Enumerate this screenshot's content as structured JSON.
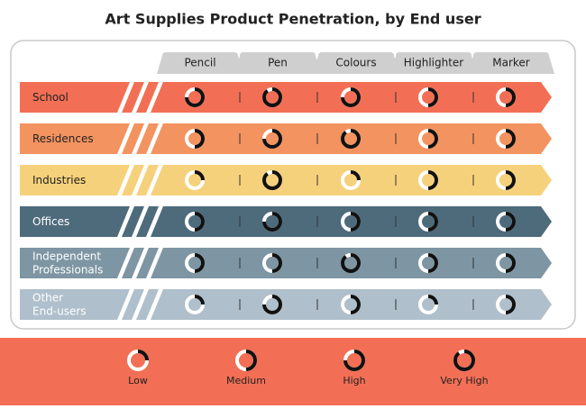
{
  "title": "Art Supplies Product Penetration, by End user",
  "columns": [
    "Pencil",
    "Pen",
    "Colours",
    "Highlighter",
    "Marker"
  ],
  "rows": [
    {
      "label": [
        "School"
      ],
      "color": "#f26f55",
      "text_color": "#222",
      "values": [
        75,
        90,
        75,
        50,
        50
      ]
    },
    {
      "label": [
        "Residences"
      ],
      "color": "#f39360",
      "text_color": "#222",
      "values": [
        50,
        75,
        90,
        50,
        50
      ]
    },
    {
      "label": [
        "Industries"
      ],
      "color": "#f6d17b",
      "text_color": "#222",
      "values": [
        25,
        90,
        25,
        50,
        50
      ]
    },
    {
      "label": [
        "Offices"
      ],
      "color": "#4e6b7c",
      "text_color": "#fff",
      "values": [
        50,
        75,
        50,
        50,
        50
      ]
    },
    {
      "label": [
        "Independent",
        "Professionals"
      ],
      "color": "#7e95a3",
      "text_color": "#fff",
      "values": [
        50,
        50,
        90,
        50,
        50
      ]
    },
    {
      "label": [
        "Other",
        "End-users"
      ],
      "color": "#afbfcb",
      "text_color": "#fff",
      "values": [
        25,
        75,
        50,
        25,
        50
      ]
    }
  ],
  "legend": [
    {
      "label": "Low",
      "value": 25
    },
    {
      "label": "Medium",
      "value": 50
    },
    {
      "label": "High",
      "value": 75
    },
    {
      "label": "Very High",
      "value": 90
    }
  ]
}
